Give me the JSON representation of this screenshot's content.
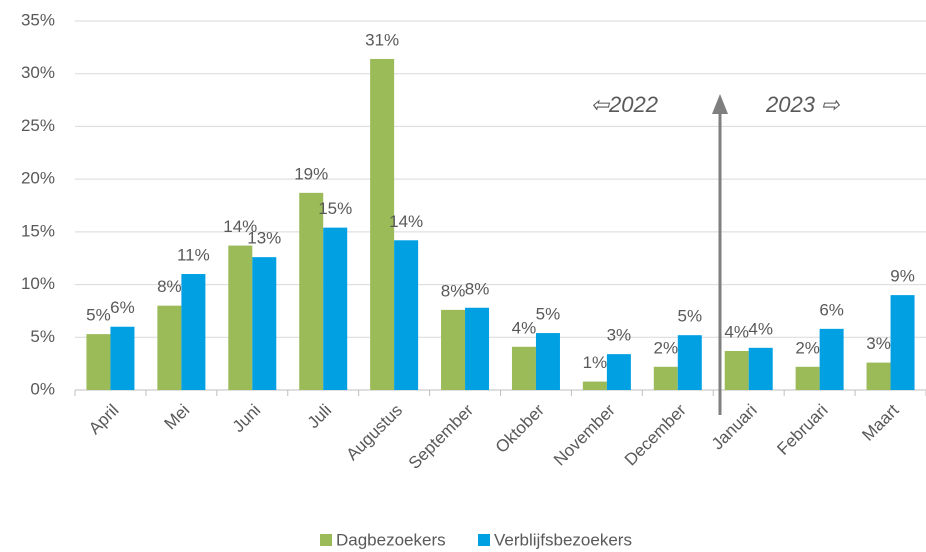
{
  "chart_data": {
    "type": "bar",
    "categories": [
      "April",
      "Mei",
      "Juni",
      "Juli",
      "Augustus",
      "September",
      "Oktober",
      "November",
      "December",
      "Januari",
      "Februari",
      "Maart"
    ],
    "series": [
      {
        "name": "Dagbezoekers",
        "color": "#9bbb59",
        "values": [
          5.3,
          8.0,
          13.7,
          18.7,
          31.4,
          7.6,
          4.1,
          0.8,
          2.2,
          3.7,
          2.2,
          2.6
        ],
        "value_labels": [
          "5%",
          "8%",
          "14%",
          "19%",
          "31%",
          "8%",
          "4%",
          "1%",
          "2%",
          "4%",
          "2%",
          "3%"
        ]
      },
      {
        "name": "Verblijfsbezoekers",
        "color": "#00a0e3",
        "values": [
          6.0,
          11.0,
          12.6,
          15.4,
          14.2,
          7.8,
          5.4,
          3.4,
          5.2,
          4.0,
          5.8,
          9.0
        ],
        "value_labels": [
          "6%",
          "11%",
          "13%",
          "15%",
          "14%",
          "8%",
          "5%",
          "3%",
          "5%",
          "4%",
          "6%",
          "9%"
        ]
      }
    ],
    "ylim": [
      0,
      35
    ],
    "yticks": [
      {
        "value": 0,
        "label": "0%"
      },
      {
        "value": 5,
        "label": "5%"
      },
      {
        "value": 10,
        "label": "10%"
      },
      {
        "value": 15,
        "label": "15%"
      },
      {
        "value": 20,
        "label": "20%"
      },
      {
        "value": 25,
        "label": "25%"
      },
      {
        "value": 30,
        "label": "30%"
      },
      {
        "value": 35,
        "label": "35%"
      }
    ],
    "grid": true,
    "legend": "bottom",
    "annotations": [
      "⇦2022",
      "2023 ⇨"
    ]
  }
}
